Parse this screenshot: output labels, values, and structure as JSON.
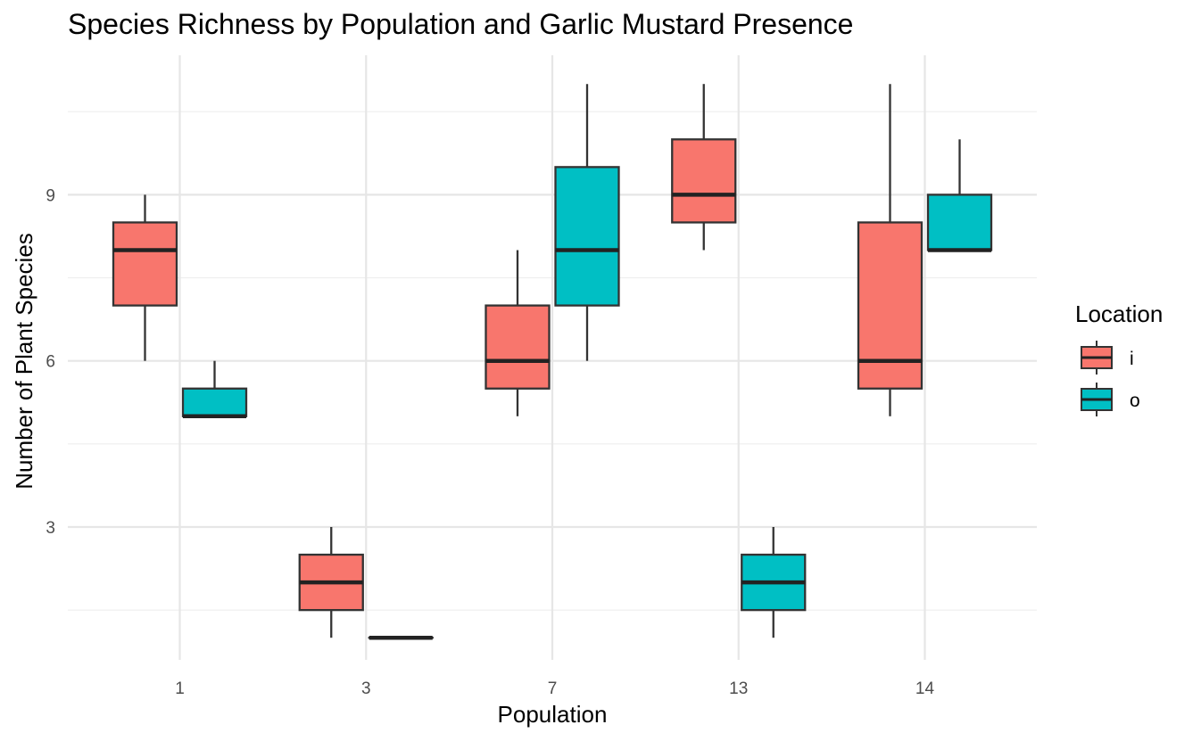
{
  "chart_data": {
    "type": "boxplot",
    "title": "Species Richness by Population and Garlic Mustard Presence",
    "xlabel": "Population",
    "ylabel": "Number of Plant Species",
    "categories": [
      "1",
      "3",
      "7",
      "13",
      "14"
    ],
    "y_ticks": [
      3,
      6,
      9
    ],
    "ylim": [
      0.6,
      11.4
    ],
    "grid": true,
    "legend": {
      "title": "Location",
      "position": "right",
      "items": [
        {
          "label": "i",
          "color": "#F8766D"
        },
        {
          "label": "o",
          "color": "#00BFC4"
        }
      ]
    },
    "series": [
      {
        "name": "i",
        "color": "#F8766D",
        "boxes": [
          {
            "category": "1",
            "min": 6,
            "q1": 7,
            "median": 8,
            "q3": 8.5,
            "max": 9
          },
          {
            "category": "3",
            "min": 1,
            "q1": 1.5,
            "median": 2,
            "q3": 2.5,
            "max": 3
          },
          {
            "category": "7",
            "min": 5,
            "q1": 5.5,
            "median": 6,
            "q3": 7,
            "max": 8
          },
          {
            "category": "13",
            "min": 8,
            "q1": 8.5,
            "median": 9,
            "q3": 10,
            "max": 11
          },
          {
            "category": "14",
            "min": 5,
            "q1": 5.5,
            "median": 6,
            "q3": 8.5,
            "max": 11
          }
        ]
      },
      {
        "name": "o",
        "color": "#00BFC4",
        "boxes": [
          {
            "category": "1",
            "min": 5,
            "q1": 5,
            "median": 5,
            "q3": 5.5,
            "max": 6
          },
          {
            "category": "3",
            "min": 1,
            "q1": 1,
            "median": 1,
            "q3": 1,
            "max": 1
          },
          {
            "category": "7",
            "min": 6,
            "q1": 7,
            "median": 8,
            "q3": 9.5,
            "max": 11
          },
          {
            "category": "13",
            "min": 1,
            "q1": 1.5,
            "median": 2,
            "q3": 2.5,
            "max": 3
          },
          {
            "category": "14",
            "min": 8,
            "q1": 8,
            "median": 8,
            "q3": 9,
            "max": 10
          }
        ]
      }
    ]
  }
}
